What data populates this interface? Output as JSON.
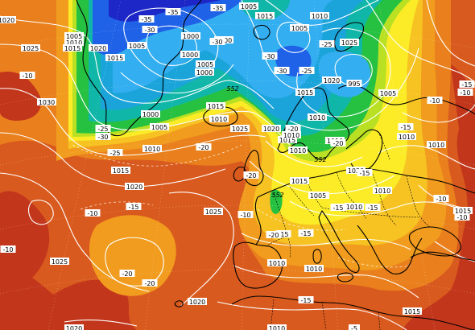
{
  "pressure_labels": [
    {
      "id": "p0",
      "text": "1020"
    },
    {
      "id": "p1",
      "text": "1005"
    },
    {
      "id": "p2",
      "text": "1010"
    },
    {
      "id": "p3",
      "text": "1015"
    },
    {
      "id": "p4",
      "text": "1025"
    },
    {
      "id": "p5",
      "text": "1020"
    },
    {
      "id": "p6",
      "text": "1015"
    },
    {
      "id": "p7",
      "text": "1005"
    },
    {
      "id": "p8",
      "text": "1000"
    },
    {
      "id": "p9",
      "text": "1000"
    },
    {
      "id": "p10",
      "text": "1005"
    },
    {
      "id": "p11",
      "text": "1015"
    },
    {
      "id": "p12",
      "text": "1010"
    },
    {
      "id": "p13",
      "text": "1005"
    },
    {
      "id": "p14",
      "text": "1000"
    },
    {
      "id": "p15",
      "text": "1000"
    },
    {
      "id": "p16",
      "text": "1005"
    },
    {
      "id": "p17",
      "text": "1015"
    },
    {
      "id": "p18",
      "text": "1010"
    },
    {
      "id": "p19",
      "text": "1005"
    },
    {
      "id": "p20",
      "text": "1000"
    },
    {
      "id": "p21",
      "text": "995"
    },
    {
      "id": "p22",
      "text": "1005"
    },
    {
      "id": "p23",
      "text": "1030"
    },
    {
      "id": "p24",
      "text": "1015"
    },
    {
      "id": "p25",
      "text": "1010"
    },
    {
      "id": "p26",
      "text": "1025"
    },
    {
      "id": "p27",
      "text": "1020"
    },
    {
      "id": "p28",
      "text": "1015"
    },
    {
      "id": "p29",
      "text": "1015"
    },
    {
      "id": "p30",
      "text": "1010"
    },
    {
      "id": "p31",
      "text": "1010"
    },
    {
      "id": "p32",
      "text": "1015"
    },
    {
      "id": "p33",
      "text": "1005"
    },
    {
      "id": "p34",
      "text": "1010"
    },
    {
      "id": "p35",
      "text": "1010"
    },
    {
      "id": "p36",
      "text": "1025"
    },
    {
      "id": "p37",
      "text": "1025"
    },
    {
      "id": "p38",
      "text": "1010"
    },
    {
      "id": "p39",
      "text": "1010"
    },
    {
      "id": "p40",
      "text": "1020"
    },
    {
      "id": "p41",
      "text": "1020"
    },
    {
      "id": "p42",
      "text": "1015"
    },
    {
      "id": "p43",
      "text": "1010"
    },
    {
      "id": "p44",
      "text": "1015"
    },
    {
      "id": "p45",
      "text": "1010"
    },
    {
      "id": "p46",
      "text": "1010"
    },
    {
      "id": "p47",
      "text": "1010"
    },
    {
      "id": "p48",
      "text": "1020"
    },
    {
      "id": "p49",
      "text": "1020"
    },
    {
      "id": "p50",
      "text": "1025"
    },
    {
      "id": "p51",
      "text": "1015"
    },
    {
      "id": "p52",
      "text": "1020"
    },
    {
      "id": "p53",
      "text": "1010"
    }
  ],
  "temperature_labels": [
    {
      "id": "t0",
      "text": "-35"
    },
    {
      "id": "t1",
      "text": "-35"
    },
    {
      "id": "t2",
      "text": "-35"
    },
    {
      "id": "t3",
      "text": "-30"
    },
    {
      "id": "t4",
      "text": "-30"
    },
    {
      "id": "t5",
      "text": "-30"
    },
    {
      "id": "t6",
      "text": "-30"
    },
    {
      "id": "t7",
      "text": "-25"
    },
    {
      "id": "t8",
      "text": "-25"
    },
    {
      "id": "t9",
      "text": "-25"
    },
    {
      "id": "t10",
      "text": "-30"
    },
    {
      "id": "t11",
      "text": "-25"
    },
    {
      "id": "t12",
      "text": "-20"
    },
    {
      "id": "t13",
      "text": "-20"
    },
    {
      "id": "t14",
      "text": "-20"
    },
    {
      "id": "t15",
      "text": "-20"
    },
    {
      "id": "t16",
      "text": "-15"
    },
    {
      "id": "t17",
      "text": "-15"
    },
    {
      "id": "t18",
      "text": "-15"
    },
    {
      "id": "t19",
      "text": "-20"
    },
    {
      "id": "t20",
      "text": "-15"
    },
    {
      "id": "t21",
      "text": "-15"
    },
    {
      "id": "t22",
      "text": "-15"
    },
    {
      "id": "t23",
      "text": "-15"
    },
    {
      "id": "t24",
      "text": "-15"
    },
    {
      "id": "t25",
      "text": "-10"
    },
    {
      "id": "t26",
      "text": "-10"
    },
    {
      "id": "t27",
      "text": "-10"
    },
    {
      "id": "t28",
      "text": "-10"
    },
    {
      "id": "t29",
      "text": "-10"
    },
    {
      "id": "t30",
      "text": "-10"
    },
    {
      "id": "t31",
      "text": "-10"
    },
    {
      "id": "t32",
      "text": "-20"
    },
    {
      "id": "t33",
      "text": "-20"
    },
    {
      "id": "t34",
      "text": "-10"
    },
    {
      "id": "t35",
      "text": "-5"
    },
    {
      "id": "t36",
      "text": "-15"
    }
  ],
  "height_labels": [
    {
      "id": "h0",
      "text": "552"
    },
    {
      "id": "h1",
      "text": "552"
    },
    {
      "id": "h2",
      "text": "552"
    }
  ],
  "colors": {
    "deep_red": "#c2361c",
    "red_orange": "#d95a1e",
    "orange": "#e9801d",
    "light_orange": "#f19c1e",
    "yellow_orange": "#f6c322",
    "yellow": "#fbec27",
    "yellow_green": "#b9e022",
    "green": "#27c142",
    "teal": "#10b6a8",
    "cyan": "#1ba4da",
    "light_blue": "#33aef0",
    "blue": "#1f62e7",
    "dark_blue": "#1d27c7"
  }
}
